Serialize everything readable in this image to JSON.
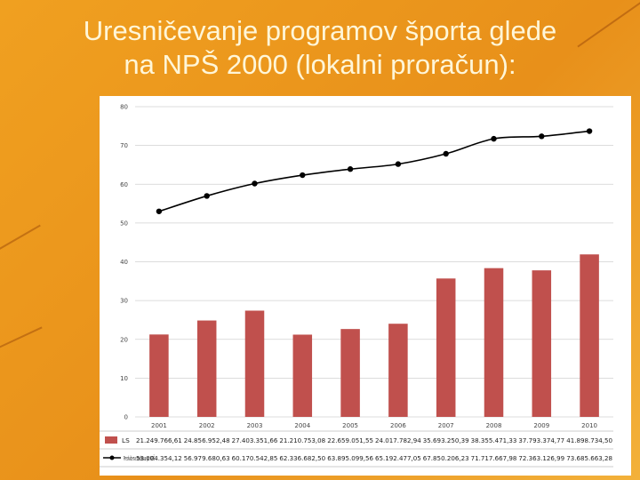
{
  "slide": {
    "title_line1": "Uresničevanje programov športa glede",
    "title_line2": "na NPŠ 2000 (lokalni proračun):"
  },
  "colors": {
    "bar": "#c0504d",
    "line": "#000000",
    "grid": "#d0d0d0"
  },
  "chart_data": {
    "type": "bar",
    "title": "",
    "categories": [
      "2001",
      "2002",
      "2003",
      "2004",
      "2005",
      "2006",
      "2007",
      "2008",
      "2009",
      "2010"
    ],
    "ylim": [
      0,
      80
    ],
    "yticks": [
      "0",
      "10",
      "20",
      "30",
      "40",
      "50",
      "60",
      "70",
      "80"
    ],
    "grid": true,
    "legend": "table-below",
    "series": [
      {
        "name": "LS",
        "kind": "bar",
        "values": [
          21.25,
          24.86,
          27.4,
          21.21,
          22.66,
          24.02,
          35.69,
          38.36,
          37.79,
          41.9
        ],
        "labels": [
          "21.249.766,61",
          "24.856.952,48",
          "27.403.351,66",
          "21.210.753,08",
          "22.659.051,55",
          "24.017.782,94",
          "35.693.250,39",
          "38.355.471,33",
          "37.793.374,77",
          "41.898.734,50"
        ]
      },
      {
        "name": "Predvidena sredstva po NPŠ",
        "kind": "line",
        "values": [
          53.0,
          56.98,
          60.17,
          62.34,
          63.9,
          65.19,
          67.85,
          71.72,
          72.36,
          73.69
        ],
        "labels": [
          "53.004.354,12",
          "56.979.680,63",
          "60.170.542,85",
          "62.336.682,50",
          "63.895.099,56",
          "65.192.477,05",
          "67.850.206,23",
          "71.717.667,98",
          "72.363.126,99",
          "73.685.663,28"
        ]
      }
    ]
  }
}
